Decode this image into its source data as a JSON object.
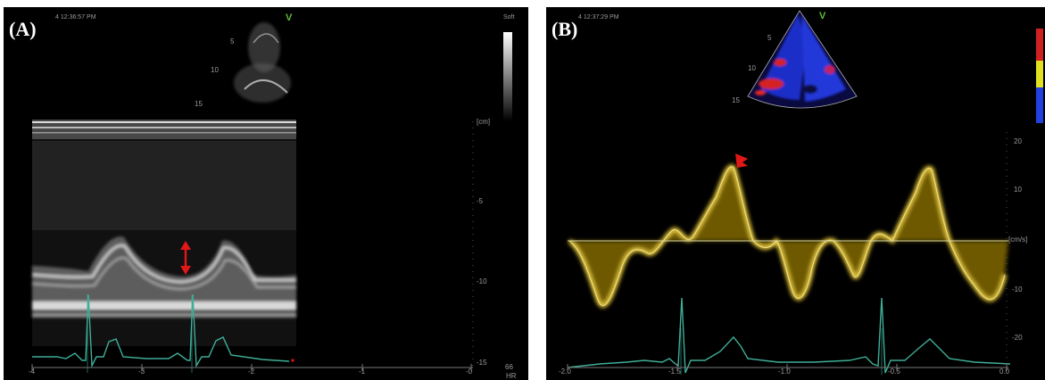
{
  "panelA": {
    "label": "(A)",
    "timestamp": "4 12:36:57 PM",
    "soft_label": "Soft",
    "v_marker": "V",
    "depth_unit": "[cm]",
    "depth_ticks": [
      "-5",
      "-10",
      "-15"
    ],
    "sector_depth_ticks": [
      "5",
      "10",
      "15"
    ],
    "time_ticks": [
      "-4",
      "-3",
      "-2",
      "-1",
      "-0"
    ],
    "hr_value": "66",
    "hr_label": "HR"
  },
  "panelB": {
    "label": "(B)",
    "timestamp": "4 12:37:29 PM",
    "v_marker": "V",
    "velocity_unit": "[cm/s]",
    "velocity_ticks": [
      "20",
      "10",
      "-10",
      "-20"
    ],
    "sector_depth_ticks": [
      "5",
      "10",
      "15"
    ],
    "time_ticks": [
      "-2.0",
      "-1.5",
      "-1.0",
      "-0.5",
      "0.0"
    ]
  },
  "colors": {
    "background": "#000000",
    "doppler_trace": "#e6c21a",
    "ecg_trace": "#3fae98",
    "annotation": "#e01818",
    "baseline": "#d8d8a0"
  }
}
